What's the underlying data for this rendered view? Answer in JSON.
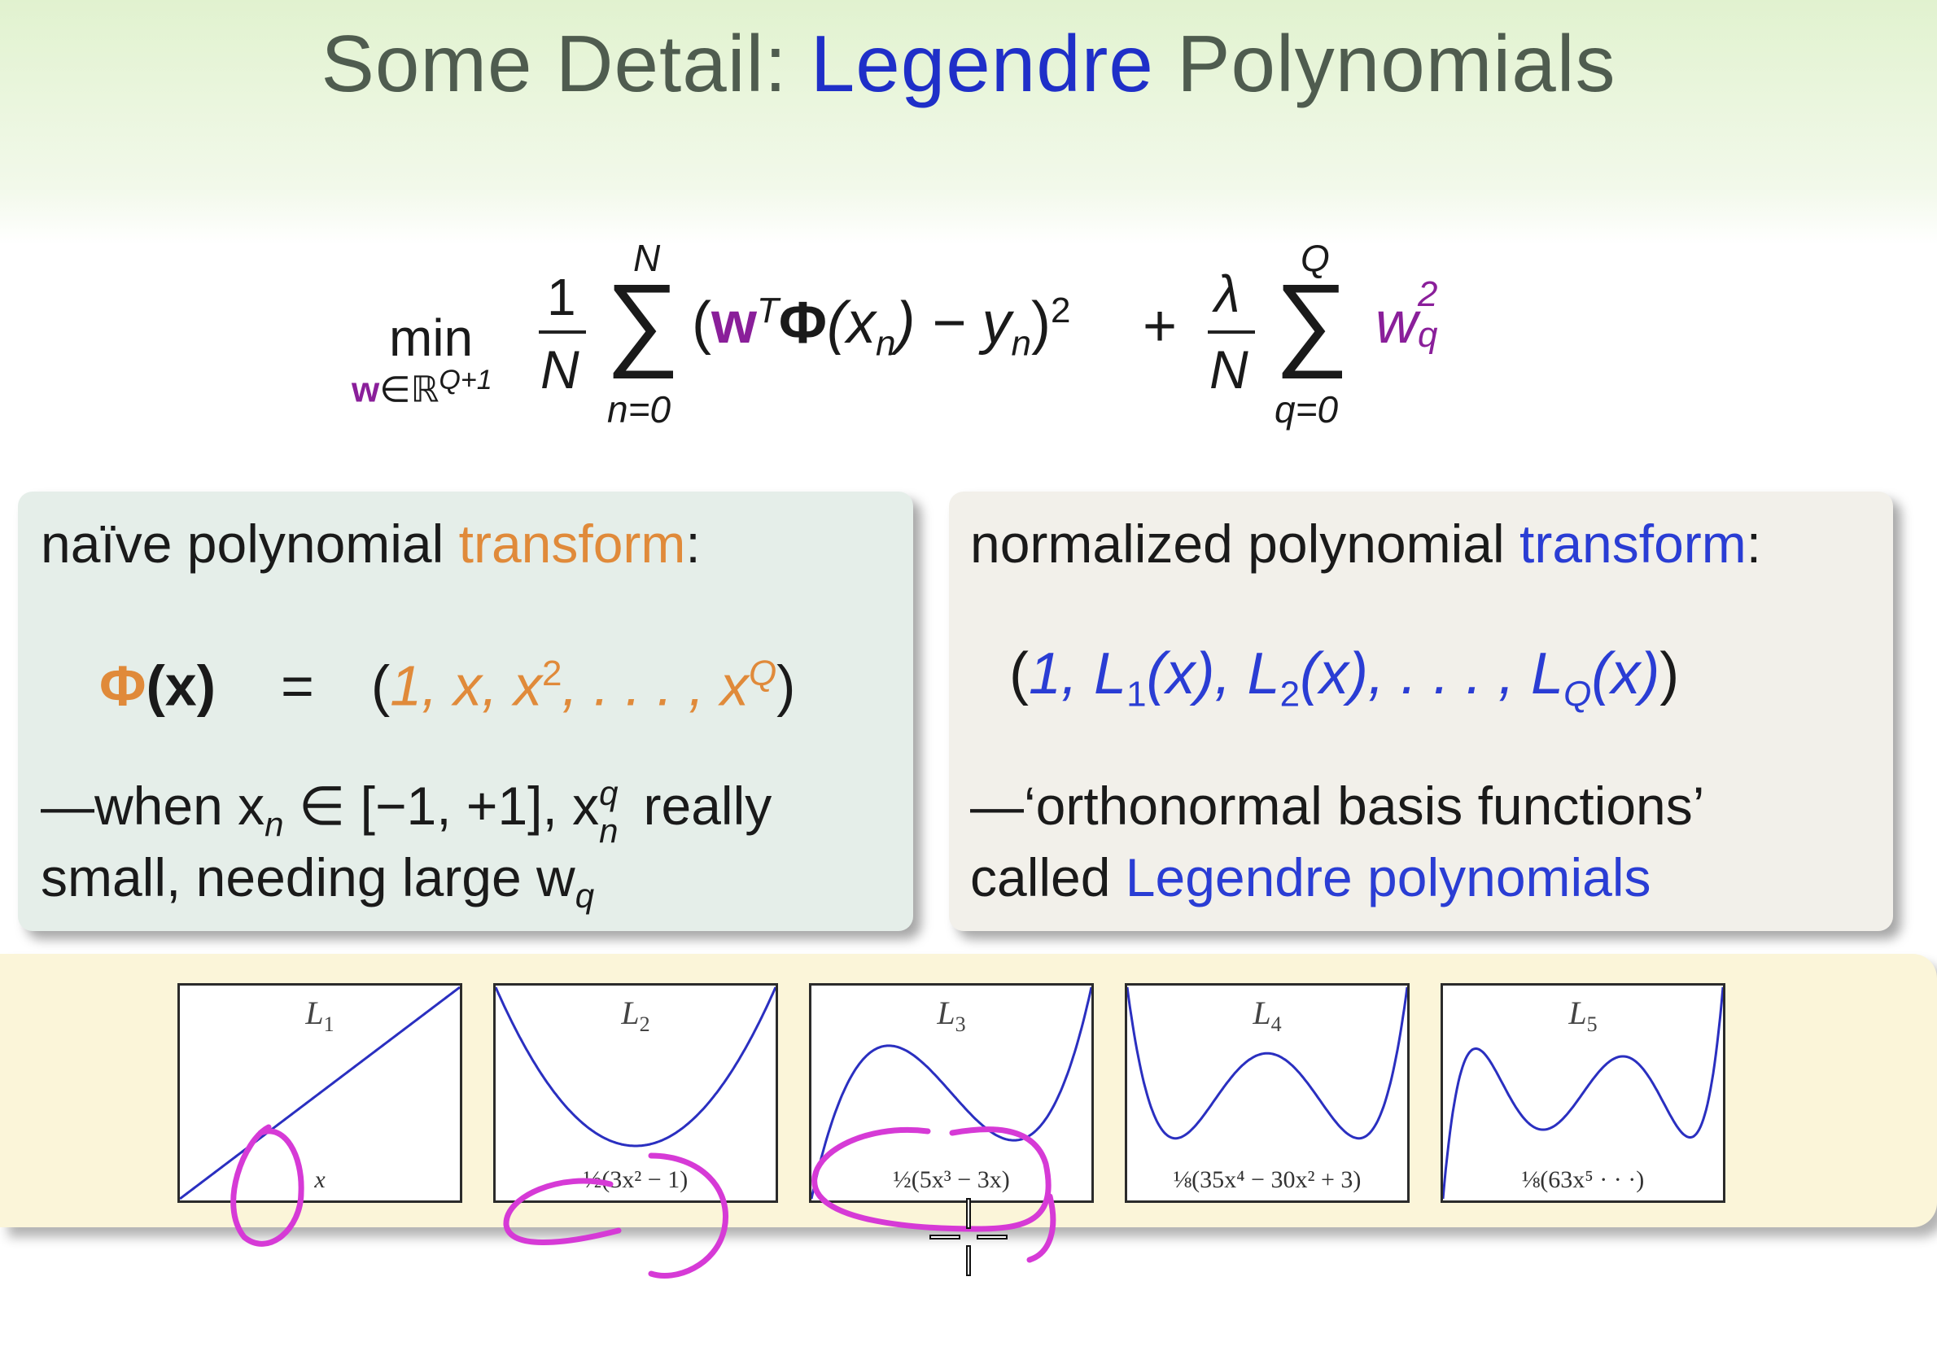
{
  "slide": {
    "title_prefix": "Some Detail: ",
    "title_highlight": "Legendre",
    "title_suffix": " Polynomials"
  },
  "formula": {
    "min": "min",
    "min_sub_w": "w",
    "min_sub_rest": "∈ℝ",
    "min_sub_sup": "Q+1",
    "frac1_num": "1",
    "frac1_den": "N",
    "sum1_top": "N",
    "sum1_bottom": "n=0",
    "paren_open": "(",
    "w": "w",
    "T": "T",
    "phi": "Φ",
    "xn_open": "(x",
    "n_sub": "n",
    "xn_close": ") − y",
    "yn_sub": "n",
    "close_sq": ")",
    "sq": "2",
    "plus": "+",
    "frac2_num": "λ",
    "frac2_den": "N",
    "sum2_top": "Q",
    "sum2_bottom": "q=0",
    "wq": "w",
    "wq_sup": "2",
    "wq_sub": "q"
  },
  "left_box": {
    "heading_prefix": "naïve polynomial ",
    "heading_highlight": "transform",
    "heading_suffix": ":",
    "phi": "Φ",
    "x_arg": "(x)",
    "equals": "=",
    "vector_open": "(",
    "vector_body": "1, x, x",
    "vector_sup": "2",
    "vector_mid": ", . . . , x",
    "vector_sup2": "Q",
    "vector_close": ")",
    "note_line1_a": "—when x",
    "note_line1_sub": "n",
    "note_line1_b": " ∈ [−1, +1], x",
    "note_line1_sup": "q",
    "note_line1_sub2": "n",
    "note_line1_c": " really",
    "note_line2_a": "small, needing large w",
    "note_line2_sub": "q"
  },
  "right_box": {
    "heading_prefix": "normalized polynomial ",
    "heading_highlight": "transform",
    "heading_suffix": ":",
    "vector_open": "(",
    "vector_body": "1, L",
    "s1": "1",
    "p1": "(x), L",
    "s2": "2",
    "p2": "(x), . . . , L",
    "sQ": "Q",
    "p3": "(x)",
    "vector_close": ")",
    "note_line1": "—‘orthonormal basis functions’",
    "note_line2_prefix": "called ",
    "note_line2_highlight": "Legendre polynomials"
  },
  "plots": [
    {
      "label": "L",
      "sub": "1",
      "formula": "x",
      "degree": 1
    },
    {
      "label": "L",
      "sub": "2",
      "formula": "½(3x² − 1)",
      "degree": 2
    },
    {
      "label": "L",
      "sub": "3",
      "formula": "½(5x³ − 3x)",
      "degree": 3
    },
    {
      "label": "L",
      "sub": "4",
      "formula": "⅛(35x⁴ − 30x² + 3)",
      "degree": 4
    },
    {
      "label": "L",
      "sub": "5",
      "formula": "⅛(63x⁵ · · ·)",
      "degree": 5
    }
  ],
  "colors": {
    "curve": "#2a2fc0",
    "ink": "#d63ad6",
    "title_highlight": "#1f2fc8",
    "orange": "#e08a3a",
    "purple": "#8a1f9a",
    "blue": "#2a3dd4"
  }
}
